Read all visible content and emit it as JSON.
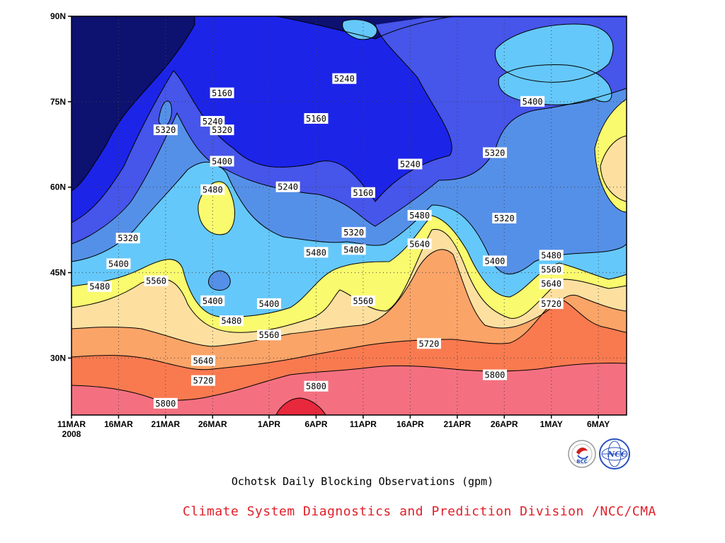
{
  "title": "Ochotsk Daily Blocking Observations (gpm)",
  "credit": "Climate System Diagnostics and Prediction Division /NCC/CMA",
  "logos": [
    "BCC",
    "NCC"
  ],
  "chart_data": {
    "type": "contour",
    "title": "Ochotsk Daily Blocking Observations (gpm)",
    "x_axis": {
      "start_date": "2008-03-11",
      "end_date": "2008-05-09",
      "tick_labels": [
        "11MAR",
        "16MAR",
        "21MAR",
        "26MAR",
        "1APR",
        "6APR",
        "11APR",
        "16APR",
        "21APR",
        "26APR",
        "1MAY",
        "6MAY"
      ],
      "year_label": "2008"
    },
    "y_axis": {
      "range": [
        20,
        90
      ],
      "ticks": [
        30,
        45,
        60,
        75,
        90
      ],
      "tick_labels": [
        "30N",
        "45N",
        "60N",
        "75N",
        "90N"
      ]
    },
    "grid": "dotted",
    "contour_levels": [
      5160,
      5240,
      5320,
      5400,
      5480,
      5560,
      5640,
      5720,
      5800
    ],
    "level_colors": [
      "#0d1170",
      "#1c24e8",
      "#4655ea",
      "#5590e8",
      "#65c8fa",
      "#fafa6e",
      "#fde0a0",
      "#fba468",
      "#fa7a50",
      "#f47080",
      "#e8283c"
    ],
    "contour_labels": [
      {
        "value": "5240",
        "date": "2008-04-09",
        "lat": 79.0
      },
      {
        "value": "5160",
        "date": "2008-03-27",
        "lat": 76.5
      },
      {
        "value": "5160",
        "date": "2008-04-06",
        "lat": 72.0
      },
      {
        "value": "5320",
        "date": "2008-03-21",
        "lat": 70.0
      },
      {
        "value": "5240",
        "date": "2008-03-26",
        "lat": 71.5
      },
      {
        "value": "5320",
        "date": "2008-03-27",
        "lat": 70.0
      },
      {
        "value": "5400",
        "date": "2008-03-27",
        "lat": 64.5
      },
      {
        "value": "5480",
        "date": "2008-03-26",
        "lat": 59.5
      },
      {
        "value": "5240",
        "date": "2008-04-03",
        "lat": 60.0
      },
      {
        "value": "5160",
        "date": "2008-04-11",
        "lat": 59.0
      },
      {
        "value": "5240",
        "date": "2008-04-16",
        "lat": 64.0
      },
      {
        "value": "5400",
        "date": "2008-04-29",
        "lat": 75.0
      },
      {
        "value": "5320",
        "date": "2008-04-25",
        "lat": 66.0
      },
      {
        "value": "5320",
        "date": "2008-04-26",
        "lat": 54.5
      },
      {
        "value": "5480",
        "date": "2008-04-17",
        "lat": 55.0
      },
      {
        "value": "5320",
        "date": "2008-03-17",
        "lat": 51.0
      },
      {
        "value": "5320",
        "date": "2008-04-10",
        "lat": 52.0
      },
      {
        "value": "5400",
        "date": "2008-03-16",
        "lat": 46.5
      },
      {
        "value": "5400",
        "date": "2008-04-10",
        "lat": 49.0
      },
      {
        "value": "5480",
        "date": "2008-04-06",
        "lat": 48.5
      },
      {
        "value": "5640",
        "date": "2008-04-17",
        "lat": 50.0
      },
      {
        "value": "5400",
        "date": "2008-04-25",
        "lat": 47.0
      },
      {
        "value": "5480",
        "date": "2008-05-01",
        "lat": 48.0
      },
      {
        "value": "5560",
        "date": "2008-05-01",
        "lat": 45.5
      },
      {
        "value": "5640",
        "date": "2008-05-01",
        "lat": 43.0
      },
      {
        "value": "5720",
        "date": "2008-05-01",
        "lat": 39.5
      },
      {
        "value": "5480",
        "date": "2008-03-14",
        "lat": 42.5
      },
      {
        "value": "5560",
        "date": "2008-03-20",
        "lat": 43.5
      },
      {
        "value": "5400",
        "date": "2008-03-26",
        "lat": 40.0
      },
      {
        "value": "5400",
        "date": "2008-04-01",
        "lat": 39.5
      },
      {
        "value": "5480",
        "date": "2008-03-28",
        "lat": 36.5
      },
      {
        "value": "5560",
        "date": "2008-04-01",
        "lat": 34.0
      },
      {
        "value": "5560",
        "date": "2008-04-11",
        "lat": 40.0
      },
      {
        "value": "5720",
        "date": "2008-04-18",
        "lat": 32.5
      },
      {
        "value": "5640",
        "date": "2008-03-25",
        "lat": 29.5
      },
      {
        "value": "5720",
        "date": "2008-03-25",
        "lat": 26.0
      },
      {
        "value": "5800",
        "date": "2008-04-06",
        "lat": 25.0
      },
      {
        "value": "5800",
        "date": "2008-04-25",
        "lat": 27.0
      },
      {
        "value": "5800",
        "date": "2008-03-21",
        "lat": 22.0
      }
    ]
  }
}
